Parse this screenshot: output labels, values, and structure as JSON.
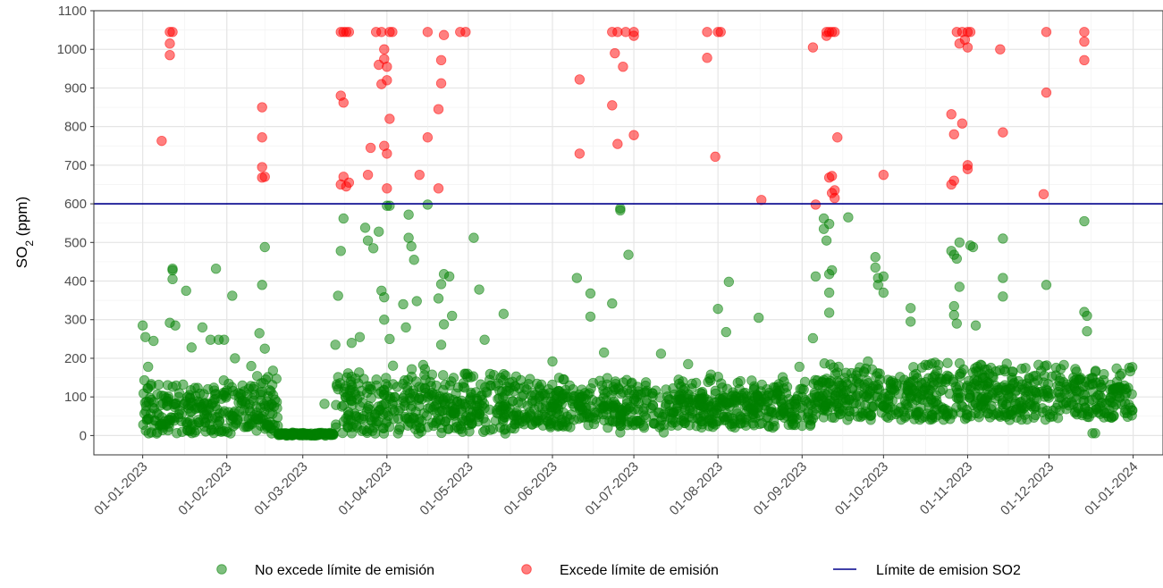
{
  "chart_data": {
    "type": "scatter",
    "ylabel": {
      "main": "SO",
      "sub": "2",
      "suffix": " (ppm)"
    },
    "xlabel": "",
    "ylim": [
      -50,
      1100
    ],
    "yticks": [
      0,
      100,
      200,
      300,
      400,
      500,
      600,
      700,
      800,
      900,
      1000,
      1100
    ],
    "xlim": [
      "2022-12-14",
      "2024-01-12"
    ],
    "xticks": [
      {
        "date": "2023-01-01",
        "label": "01-01-2023"
      },
      {
        "date": "2023-02-01",
        "label": "01-02-2023"
      },
      {
        "date": "2023-03-01",
        "label": "01-03-2023"
      },
      {
        "date": "2023-04-01",
        "label": "01-04-2023"
      },
      {
        "date": "2023-05-01",
        "label": "01-05-2023"
      },
      {
        "date": "2023-06-01",
        "label": "01-06-2023"
      },
      {
        "date": "2023-07-01",
        "label": "01-07-2023"
      },
      {
        "date": "2023-08-01",
        "label": "01-08-2023"
      },
      {
        "date": "2023-09-01",
        "label": "01-09-2023"
      },
      {
        "date": "2023-10-01",
        "label": "01-10-2023"
      },
      {
        "date": "2023-11-01",
        "label": "01-11-2023"
      },
      {
        "date": "2023-12-01",
        "label": "01-12-2023"
      },
      {
        "date": "2024-01-01",
        "label": "01-01-2024"
      }
    ],
    "grid": true,
    "legend_position": "bottom",
    "legend": [
      {
        "label": "No excede límite de emisión",
        "kind": "point",
        "color": "#008000"
      },
      {
        "label": "Excede límite de emisión",
        "kind": "point",
        "color": "#ff0000"
      },
      {
        "label": "Límite de emision SO2",
        "kind": "line",
        "color": "#00008b"
      }
    ],
    "hline": {
      "y": 600,
      "color": "#00008b"
    },
    "series": [
      {
        "name": "Excede límite de emisión",
        "color": "#ff0000",
        "points": [
          [
            "2023-01-08",
            763
          ],
          [
            "2023-01-11",
            985
          ],
          [
            "2023-01-11",
            1015
          ],
          [
            "2023-01-11",
            1045
          ],
          [
            "2023-01-12",
            1045
          ],
          [
            "2023-02-14",
            850
          ],
          [
            "2023-02-14",
            772
          ],
          [
            "2023-02-14",
            695
          ],
          [
            "2023-02-15",
            670
          ],
          [
            "2023-02-14",
            668
          ],
          [
            "2023-03-15",
            880
          ],
          [
            "2023-03-15",
            650
          ],
          [
            "2023-03-16",
            670
          ],
          [
            "2023-03-16",
            862
          ],
          [
            "2023-03-17",
            645
          ],
          [
            "2023-03-18",
            655
          ],
          [
            "2023-03-15",
            1045
          ],
          [
            "2023-03-16",
            1045
          ],
          [
            "2023-03-17",
            1045
          ],
          [
            "2023-03-18",
            1045
          ],
          [
            "2023-03-25",
            675
          ],
          [
            "2023-03-26",
            745
          ],
          [
            "2023-03-28",
            1045
          ],
          [
            "2023-03-29",
            960
          ],
          [
            "2023-03-30",
            910
          ],
          [
            "2023-03-30",
            1045
          ],
          [
            "2023-03-31",
            1000
          ],
          [
            "2023-03-31",
            975
          ],
          [
            "2023-04-01",
            955
          ],
          [
            "2023-04-01",
            920
          ],
          [
            "2023-03-31",
            750
          ],
          [
            "2023-04-01",
            730
          ],
          [
            "2023-04-01",
            640
          ],
          [
            "2023-04-02",
            820
          ],
          [
            "2023-04-02",
            1045
          ],
          [
            "2023-04-03",
            1045
          ],
          [
            "2023-04-13",
            675
          ],
          [
            "2023-04-16",
            772
          ],
          [
            "2023-04-16",
            1045
          ],
          [
            "2023-04-20",
            845
          ],
          [
            "2023-04-20",
            640
          ],
          [
            "2023-04-21",
            972
          ],
          [
            "2023-04-21",
            912
          ],
          [
            "2023-04-22",
            1037
          ],
          [
            "2023-04-28",
            1045
          ],
          [
            "2023-04-30",
            1045
          ],
          [
            "2023-06-11",
            922
          ],
          [
            "2023-06-11",
            730
          ],
          [
            "2023-06-23",
            855
          ],
          [
            "2023-06-23",
            1045
          ],
          [
            "2023-06-24",
            990
          ],
          [
            "2023-06-25",
            755
          ],
          [
            "2023-06-25",
            1045
          ],
          [
            "2023-06-27",
            955
          ],
          [
            "2023-06-28",
            1045
          ],
          [
            "2023-07-01",
            1045
          ],
          [
            "2023-07-01",
            1035
          ],
          [
            "2023-07-01",
            778
          ],
          [
            "2023-07-28",
            1045
          ],
          [
            "2023-07-28",
            978
          ],
          [
            "2023-07-31",
            722
          ],
          [
            "2023-08-01",
            1045
          ],
          [
            "2023-08-02",
            1045
          ],
          [
            "2023-08-17",
            610
          ],
          [
            "2023-09-05",
            1005
          ],
          [
            "2023-09-06",
            598
          ],
          [
            "2023-09-10",
            1045
          ],
          [
            "2023-09-10",
            1035
          ],
          [
            "2023-09-11",
            1045
          ],
          [
            "2023-09-12",
            1045
          ],
          [
            "2023-09-13",
            1045
          ],
          [
            "2023-09-11",
            668
          ],
          [
            "2023-09-12",
            672
          ],
          [
            "2023-09-12",
            628
          ],
          [
            "2023-09-13",
            635
          ],
          [
            "2023-09-13",
            615
          ],
          [
            "2023-09-14",
            772
          ],
          [
            "2023-10-01",
            675
          ],
          [
            "2023-10-26",
            650
          ],
          [
            "2023-10-26",
            832
          ],
          [
            "2023-10-27",
            780
          ],
          [
            "2023-10-27",
            660
          ],
          [
            "2023-10-28",
            1045
          ],
          [
            "2023-10-29",
            1015
          ],
          [
            "2023-10-30",
            808
          ],
          [
            "2023-10-30",
            1045
          ],
          [
            "2023-10-31",
            1025
          ],
          [
            "2023-11-01",
            1005
          ],
          [
            "2023-11-01",
            1045
          ],
          [
            "2023-11-02",
            1045
          ],
          [
            "2023-11-01",
            700
          ],
          [
            "2023-11-01",
            690
          ],
          [
            "2023-11-13",
            1000
          ],
          [
            "2023-11-14",
            785
          ],
          [
            "2023-11-29",
            625
          ],
          [
            "2023-11-30",
            888
          ],
          [
            "2023-11-30",
            1045
          ],
          [
            "2023-12-14",
            1045
          ],
          [
            "2023-12-14",
            1020
          ],
          [
            "2023-12-14",
            972
          ]
        ]
      },
      {
        "name": "No excede límite de emisión",
        "color": "#008000",
        "points": [
          [
            "2023-01-01",
            285
          ],
          [
            "2023-01-02",
            255
          ],
          [
            "2023-01-05",
            245
          ],
          [
            "2023-01-03",
            178
          ],
          [
            "2023-01-12",
            432
          ],
          [
            "2023-01-12",
            428
          ],
          [
            "2023-01-12",
            405
          ],
          [
            "2023-01-11",
            292
          ],
          [
            "2023-01-13",
            285
          ],
          [
            "2023-01-17",
            375
          ],
          [
            "2023-01-19",
            228
          ],
          [
            "2023-01-23",
            280
          ],
          [
            "2023-01-28",
            432
          ],
          [
            "2023-01-26",
            248
          ],
          [
            "2023-01-29",
            248
          ],
          [
            "2023-01-31",
            248
          ],
          [
            "2023-02-03",
            362
          ],
          [
            "2023-02-04",
            200
          ],
          [
            "2023-02-15",
            488
          ],
          [
            "2023-02-14",
            390
          ],
          [
            "2023-02-13",
            265
          ],
          [
            "2023-02-15",
            225
          ],
          [
            "2023-02-10",
            180
          ],
          [
            "2023-02-18",
            168
          ],
          [
            "2023-03-09",
            82
          ],
          [
            "2023-03-13",
            235
          ],
          [
            "2023-03-16",
            562
          ],
          [
            "2023-03-15",
            478
          ],
          [
            "2023-03-14",
            362
          ],
          [
            "2023-03-19",
            240
          ],
          [
            "2023-03-22",
            255
          ],
          [
            "2023-03-24",
            538
          ],
          [
            "2023-03-25",
            505
          ],
          [
            "2023-03-27",
            485
          ],
          [
            "2023-03-29",
            528
          ],
          [
            "2023-03-30",
            375
          ],
          [
            "2023-03-31",
            358
          ],
          [
            "2023-04-01",
            595
          ],
          [
            "2023-04-02",
            595
          ],
          [
            "2023-03-31",
            300
          ],
          [
            "2023-04-02",
            250
          ],
          [
            "2023-04-07",
            340
          ],
          [
            "2023-04-09",
            572
          ],
          [
            "2023-04-09",
            512
          ],
          [
            "2023-04-10",
            490
          ],
          [
            "2023-04-11",
            455
          ],
          [
            "2023-04-12",
            348
          ],
          [
            "2023-04-08",
            280
          ],
          [
            "2023-04-15",
            172
          ],
          [
            "2023-04-16",
            598
          ],
          [
            "2023-04-20",
            355
          ],
          [
            "2023-04-21",
            392
          ],
          [
            "2023-04-22",
            418
          ],
          [
            "2023-04-24",
            412
          ],
          [
            "2023-04-22",
            288
          ],
          [
            "2023-04-25",
            310
          ],
          [
            "2023-04-21",
            235
          ],
          [
            "2023-05-03",
            512
          ],
          [
            "2023-05-05",
            378
          ],
          [
            "2023-05-07",
            248
          ],
          [
            "2023-05-14",
            315
          ],
          [
            "2023-06-01",
            192
          ],
          [
            "2023-06-10",
            408
          ],
          [
            "2023-06-15",
            368
          ],
          [
            "2023-06-15",
            308
          ],
          [
            "2023-06-20",
            215
          ],
          [
            "2023-06-26",
            588
          ],
          [
            "2023-06-26",
            583
          ],
          [
            "2023-06-23",
            342
          ],
          [
            "2023-06-29",
            468
          ],
          [
            "2023-07-11",
            212
          ],
          [
            "2023-07-21",
            185
          ],
          [
            "2023-08-01",
            328
          ],
          [
            "2023-08-05",
            398
          ],
          [
            "2023-08-04",
            268
          ],
          [
            "2023-08-16",
            305
          ],
          [
            "2023-08-31",
            178
          ],
          [
            "2023-09-05",
            252
          ],
          [
            "2023-09-06",
            412
          ],
          [
            "2023-09-09",
            562
          ],
          [
            "2023-09-09",
            535
          ],
          [
            "2023-09-10",
            505
          ],
          [
            "2023-09-11",
            548
          ],
          [
            "2023-09-11",
            418
          ],
          [
            "2023-09-12",
            428
          ],
          [
            "2023-09-11",
            370
          ],
          [
            "2023-09-11",
            318
          ],
          [
            "2023-09-18",
            565
          ],
          [
            "2023-09-28",
            462
          ],
          [
            "2023-09-28",
            435
          ],
          [
            "2023-09-29",
            408
          ],
          [
            "2023-09-29",
            390
          ],
          [
            "2023-10-01",
            412
          ],
          [
            "2023-10-01",
            370
          ],
          [
            "2023-10-11",
            330
          ],
          [
            "2023-10-11",
            295
          ],
          [
            "2023-10-26",
            478
          ],
          [
            "2023-10-27",
            468
          ],
          [
            "2023-10-28",
            458
          ],
          [
            "2023-10-29",
            500
          ],
          [
            "2023-10-29",
            385
          ],
          [
            "2023-10-27",
            335
          ],
          [
            "2023-10-27",
            312
          ],
          [
            "2023-10-28",
            290
          ],
          [
            "2023-11-02",
            492
          ],
          [
            "2023-11-03",
            488
          ],
          [
            "2023-11-04",
            285
          ],
          [
            "2023-11-14",
            510
          ],
          [
            "2023-11-14",
            408
          ],
          [
            "2023-11-14",
            360
          ],
          [
            "2023-11-30",
            390
          ],
          [
            "2023-12-14",
            555
          ],
          [
            "2023-12-14",
            320
          ],
          [
            "2023-12-15",
            310
          ],
          [
            "2023-12-15",
            270
          ],
          [
            "2023-06-26",
            8
          ],
          [
            "2023-07-12",
            8
          ],
          [
            "2023-12-17",
            6
          ],
          [
            "2023-12-18",
            6
          ]
        ],
        "band": [
          {
            "from": "2023-01-01",
            "to": "2023-02-20",
            "low": 5,
            "high": 160
          },
          {
            "from": "2023-02-20",
            "to": "2023-03-13",
            "low": 0,
            "high": 8
          },
          {
            "from": "2023-03-13",
            "to": "2023-05-20",
            "low": 5,
            "high": 185
          },
          {
            "from": "2023-05-20",
            "to": "2023-09-06",
            "low": 20,
            "high": 160
          },
          {
            "from": "2023-09-06",
            "to": "2024-01-01",
            "low": 40,
            "high": 200
          }
        ]
      }
    ]
  }
}
